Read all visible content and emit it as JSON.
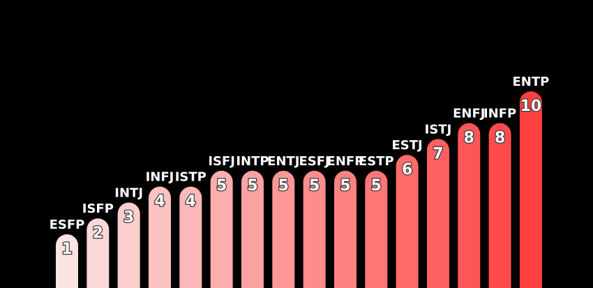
{
  "chart_data": {
    "type": "bar",
    "categories": [
      "ESFP",
      "ISFP",
      "INTJ",
      "INFJ",
      "ISTP",
      "ISFJ",
      "INTP",
      "ENTJ",
      "ESFJ",
      "ENFP",
      "ESTP",
      "ESTJ",
      "ISTJ",
      "ENFJ",
      "INFP",
      "ENTP"
    ],
    "values": [
      1,
      2,
      3,
      4,
      4,
      5,
      5,
      5,
      5,
      5,
      5,
      6,
      7,
      8,
      8,
      10
    ],
    "title": "",
    "xlabel": "",
    "ylabel": "",
    "ylim": [
      0,
      10
    ],
    "grid": false,
    "legend": "none",
    "colors": {
      "start": "#fbe3e3",
      "end": "#ff4040",
      "background": "#000000",
      "label": "#ffffff"
    }
  }
}
